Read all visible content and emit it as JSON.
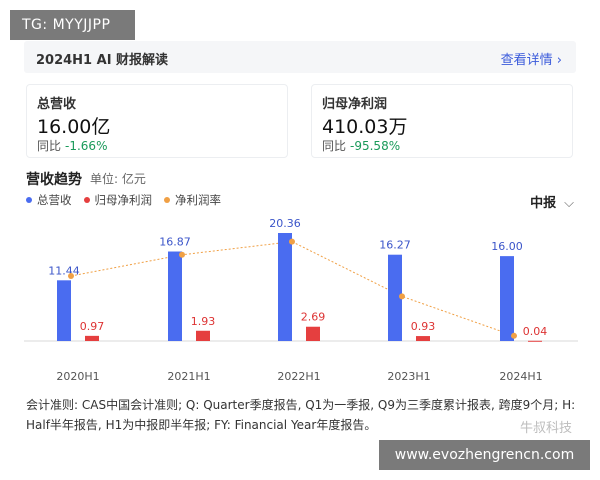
{
  "overlay_top": "TG: MYYJJPP",
  "overlay_bottom": "www.evozhengrencn.com",
  "watermark": "牛叔科技",
  "header": {
    "title": "2024H1 AI 财报解读",
    "link": "查看详情 ›"
  },
  "cards": {
    "revenue": {
      "title": "总营收",
      "value": "16.00亿",
      "change_label": "同比",
      "change": "-1.66%"
    },
    "profit": {
      "title": "归母净利润",
      "value": "410.03万",
      "change_label": "同比",
      "change": "-95.58%"
    }
  },
  "trend": {
    "title": "营收趋势",
    "unit": "单位: 亿元",
    "period": "中报",
    "period_chevron": "⌵"
  },
  "colors": {
    "revenue": "#4a6cf0",
    "profit": "#e53f3f",
    "margin": "#f0a045",
    "up": "#1a9a5a"
  },
  "chart_data": {
    "type": "bar",
    "categories": [
      "2020H1",
      "2021H1",
      "2022H1",
      "2023H1",
      "2024H1"
    ],
    "series": [
      {
        "name": "总营收",
        "values": [
          11.44,
          16.87,
          20.36,
          16.27,
          16.0
        ],
        "labels": [
          "11.44",
          "16.87",
          "20.36",
          "16.27",
          "16.00"
        ]
      },
      {
        "name": "归母净利润",
        "values": [
          0.97,
          1.93,
          2.69,
          0.93,
          0.04
        ],
        "labels": [
          "0.97",
          "1.93",
          "2.69",
          "0.93",
          "0.04"
        ]
      },
      {
        "name": "净利润率",
        "type": "line",
        "values": [
          8.5,
          11.4,
          13.2,
          5.7,
          0.3
        ]
      }
    ],
    "legend_position": "top-left",
    "grid": false
  },
  "footnote": "会计准则: CAS中国会计准则; Q: Quarter季度报告, Q1为一季报, Q9为三季度累计报表, 跨度9个月; H: Half半年报告, H1为中报即半年报; FY: Financial Year年度报告。"
}
